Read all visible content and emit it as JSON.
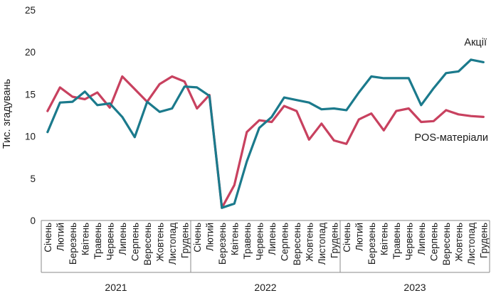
{
  "chart_data": {
    "type": "line",
    "ylabel": "Тис. згадувань",
    "ylim": [
      0,
      25
    ],
    "yticks": [
      0,
      5,
      10,
      15,
      20,
      25
    ],
    "grid": false,
    "months": [
      "Січень",
      "Лютий",
      "Березень",
      "Квітень",
      "Травень",
      "Червень",
      "Липень",
      "Серпень",
      "Вересень",
      "Жовтень",
      "Листопад",
      "Грудень"
    ],
    "years": [
      "2021",
      "2022",
      "2023"
    ],
    "x": [
      "2021-01",
      "2021-02",
      "2021-03",
      "2021-04",
      "2021-05",
      "2021-06",
      "2021-07",
      "2021-08",
      "2021-09",
      "2021-10",
      "2021-11",
      "2021-12",
      "2022-01",
      "2022-02",
      "2022-03",
      "2022-04",
      "2022-05",
      "2022-06",
      "2022-07",
      "2022-08",
      "2022-09",
      "2022-10",
      "2022-11",
      "2022-12",
      "2023-01",
      "2023-02",
      "2023-03",
      "2023-04",
      "2023-05",
      "2023-06",
      "2023-07",
      "2023-08",
      "2023-09",
      "2023-10",
      "2023-11",
      "2023-12"
    ],
    "series": [
      {
        "name": "Акції",
        "color": "#1b7a8c",
        "values": [
          10.5,
          14.0,
          14.1,
          15.3,
          13.7,
          13.9,
          12.3,
          9.9,
          14.1,
          12.9,
          13.3,
          15.9,
          15.8,
          14.8,
          1.5,
          2.0,
          7.0,
          11.0,
          12.3,
          14.6,
          14.3,
          14.0,
          13.2,
          13.3,
          13.1,
          15.2,
          17.1,
          16.9,
          16.9,
          16.9,
          13.7,
          15.7,
          17.5,
          17.7,
          19.1,
          18.8
        ]
      },
      {
        "name": "POS-матеріали",
        "color": "#c8415f",
        "values": [
          13.0,
          15.8,
          14.7,
          14.4,
          15.2,
          13.4,
          17.1,
          15.6,
          14.1,
          16.2,
          17.1,
          16.5,
          13.3,
          14.9,
          1.5,
          4.2,
          10.5,
          11.9,
          11.7,
          13.6,
          13.0,
          9.6,
          11.5,
          9.5,
          9.1,
          12.0,
          12.7,
          10.7,
          13.0,
          13.3,
          11.7,
          11.8,
          13.1,
          12.6,
          12.4,
          12.3
        ]
      }
    ]
  }
}
